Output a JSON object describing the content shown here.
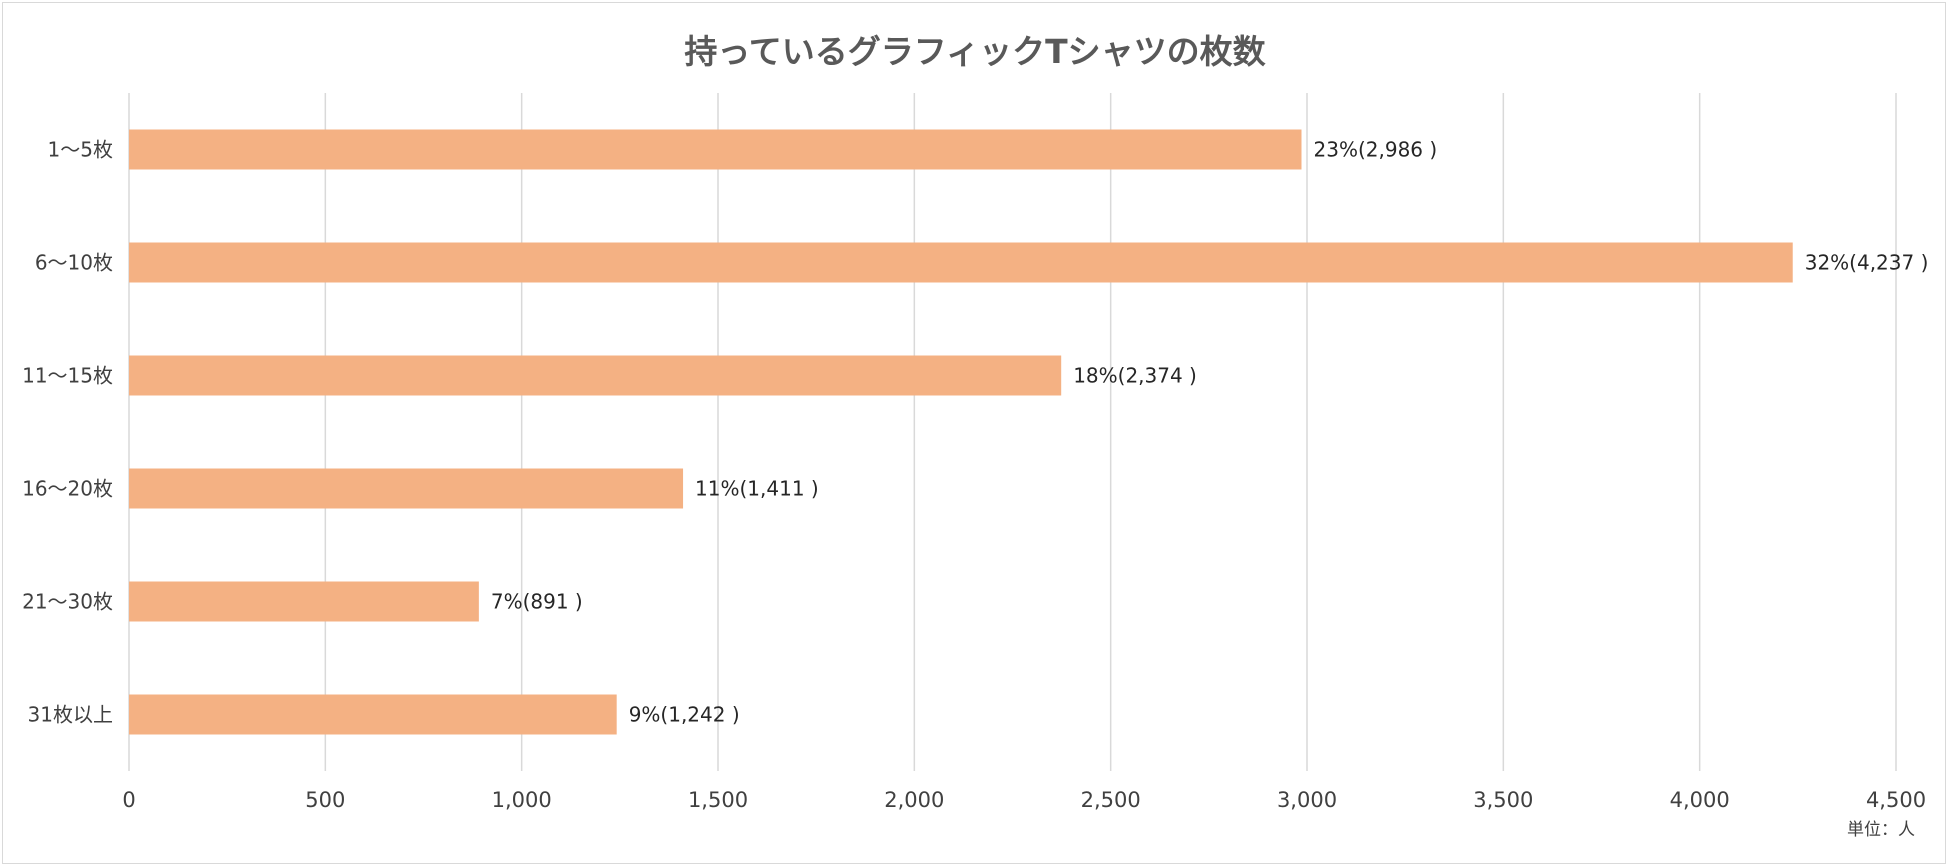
{
  "chart_data": {
    "type": "bar",
    "orientation": "horizontal",
    "title": "持っているグラフィックTシャツの枚数",
    "categories": [
      "1〜5枚",
      "6〜10枚",
      "11〜15枚",
      "16〜20枚",
      "21〜30枚",
      "31枚以上"
    ],
    "values": [
      2986,
      4237,
      2374,
      1411,
      891,
      1242
    ],
    "data_labels": [
      "23%(2,986 )",
      "32%(4,237 )",
      "18%(2,374 )",
      "11%(1,411 )",
      "7%(891 )",
      "9%(1,242 )"
    ],
    "xlim": [
      0,
      4500
    ],
    "x_ticks": [
      0,
      500,
      1000,
      1500,
      2000,
      2500,
      3000,
      3500,
      4000,
      4500
    ],
    "x_tick_labels": [
      "0",
      "500",
      "1,000",
      "1,500",
      "2,000",
      "2,500",
      "3,000",
      "3,500",
      "4,000",
      "4,500"
    ],
    "unit_note": "単位：人",
    "grid": "vertical",
    "bar_color": "#f4b183"
  }
}
